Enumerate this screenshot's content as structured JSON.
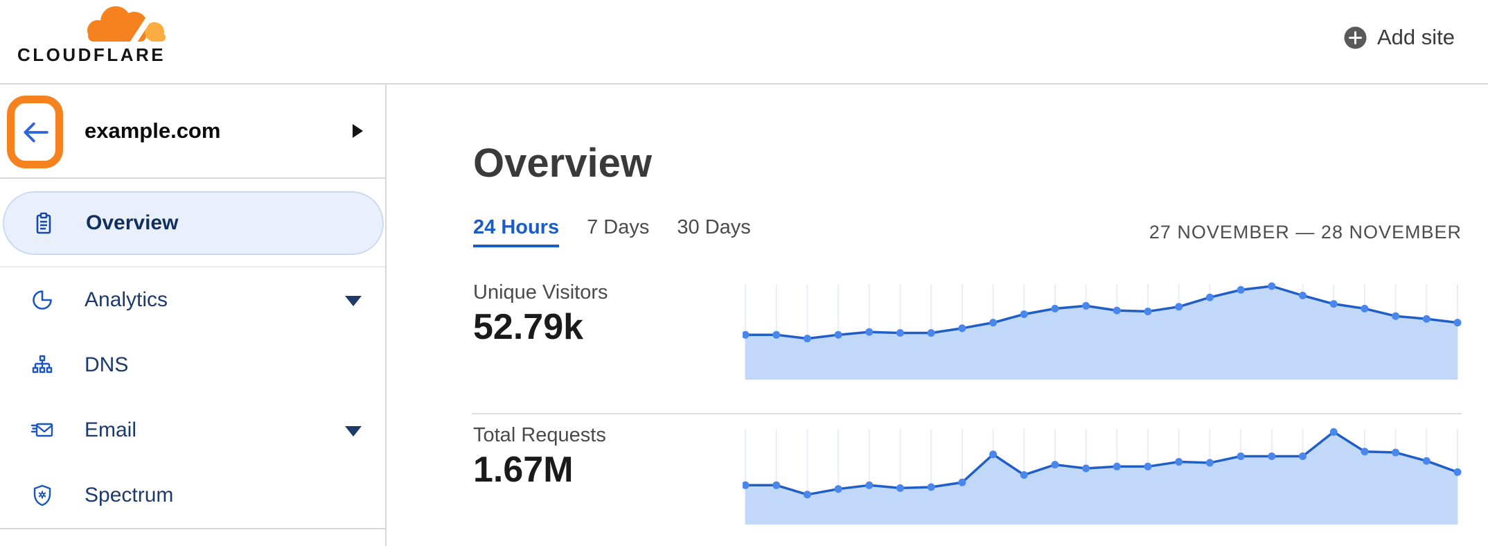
{
  "header": {
    "logo_text": "CLOUDFLARE",
    "add_site": {
      "label": "Add site",
      "icon": "plus-circle"
    }
  },
  "sidebar": {
    "back_button": {
      "icon": "arrow-left",
      "highlighted": true,
      "highlight_color": "#F6821F"
    },
    "site_name": "example.com",
    "site_expander_icon": "caret-right",
    "items": [
      {
        "label": "Overview",
        "icon": "clipboard",
        "active": true,
        "has_submenu": false
      },
      {
        "label": "Analytics",
        "icon": "pie-chart",
        "active": false,
        "has_submenu": true
      },
      {
        "label": "DNS",
        "icon": "network-hierarchy",
        "active": false,
        "has_submenu": false
      },
      {
        "label": "Email",
        "icon": "envelope",
        "active": false,
        "has_submenu": true
      },
      {
        "label": "Spectrum",
        "icon": "shield",
        "active": false,
        "has_submenu": false
      }
    ]
  },
  "main": {
    "title": "Overview",
    "tabs": [
      {
        "label": "24 Hours",
        "active": true
      },
      {
        "label": "7 Days",
        "active": false
      },
      {
        "label": "30 Days",
        "active": false
      }
    ],
    "date_range": "27 NOVEMBER — 28 NOVEMBER",
    "stats": [
      {
        "label": "Unique Visitors",
        "value": "52.79k"
      },
      {
        "label": "Total Requests",
        "value": "1.67M"
      }
    ]
  },
  "chart_data": [
    {
      "type": "area",
      "title": "Unique Visitors",
      "total_label": "52.79k",
      "points": 24,
      "xlabel": "",
      "ylabel": "",
      "ylim": [
        0,
        100
      ],
      "values_pct_of_peak": [
        48,
        48,
        44,
        48,
        51,
        50,
        50,
        55,
        61,
        70,
        76,
        79,
        74,
        73,
        78,
        88,
        96,
        100,
        90,
        81,
        76,
        68,
        65,
        61
      ],
      "grid": "vertical-only",
      "legend": "none",
      "line_color": "#1E5EC6",
      "dot_color": "#4A87EC",
      "fill_color": "#C2D8F8",
      "grid_color": "#E9EDF5"
    },
    {
      "type": "area",
      "title": "Total Requests",
      "total_label": "1.67M",
      "points": 24,
      "xlabel": "",
      "ylabel": "",
      "ylim": [
        0,
        100
      ],
      "values_pct_of_peak": [
        42,
        42,
        32,
        38,
        42,
        39,
        40,
        45,
        75,
        53,
        64,
        60,
        62,
        62,
        67,
        66,
        73,
        73,
        73,
        99,
        78,
        77,
        68,
        56
      ],
      "grid": "vertical-only",
      "legend": "none",
      "line_color": "#1E5EC6",
      "dot_color": "#4A87EC",
      "fill_color": "#C2D8F8",
      "grid_color": "#E9EDF5"
    }
  ],
  "colors": {
    "brand_orange": "#F6821F",
    "brand_orange_light": "#FBAD41",
    "link_blue": "#1A5DC8",
    "nav_text": "#1C3A6B",
    "nav_active_bg": "#E9F0FB",
    "border": "#D8D8D8"
  }
}
